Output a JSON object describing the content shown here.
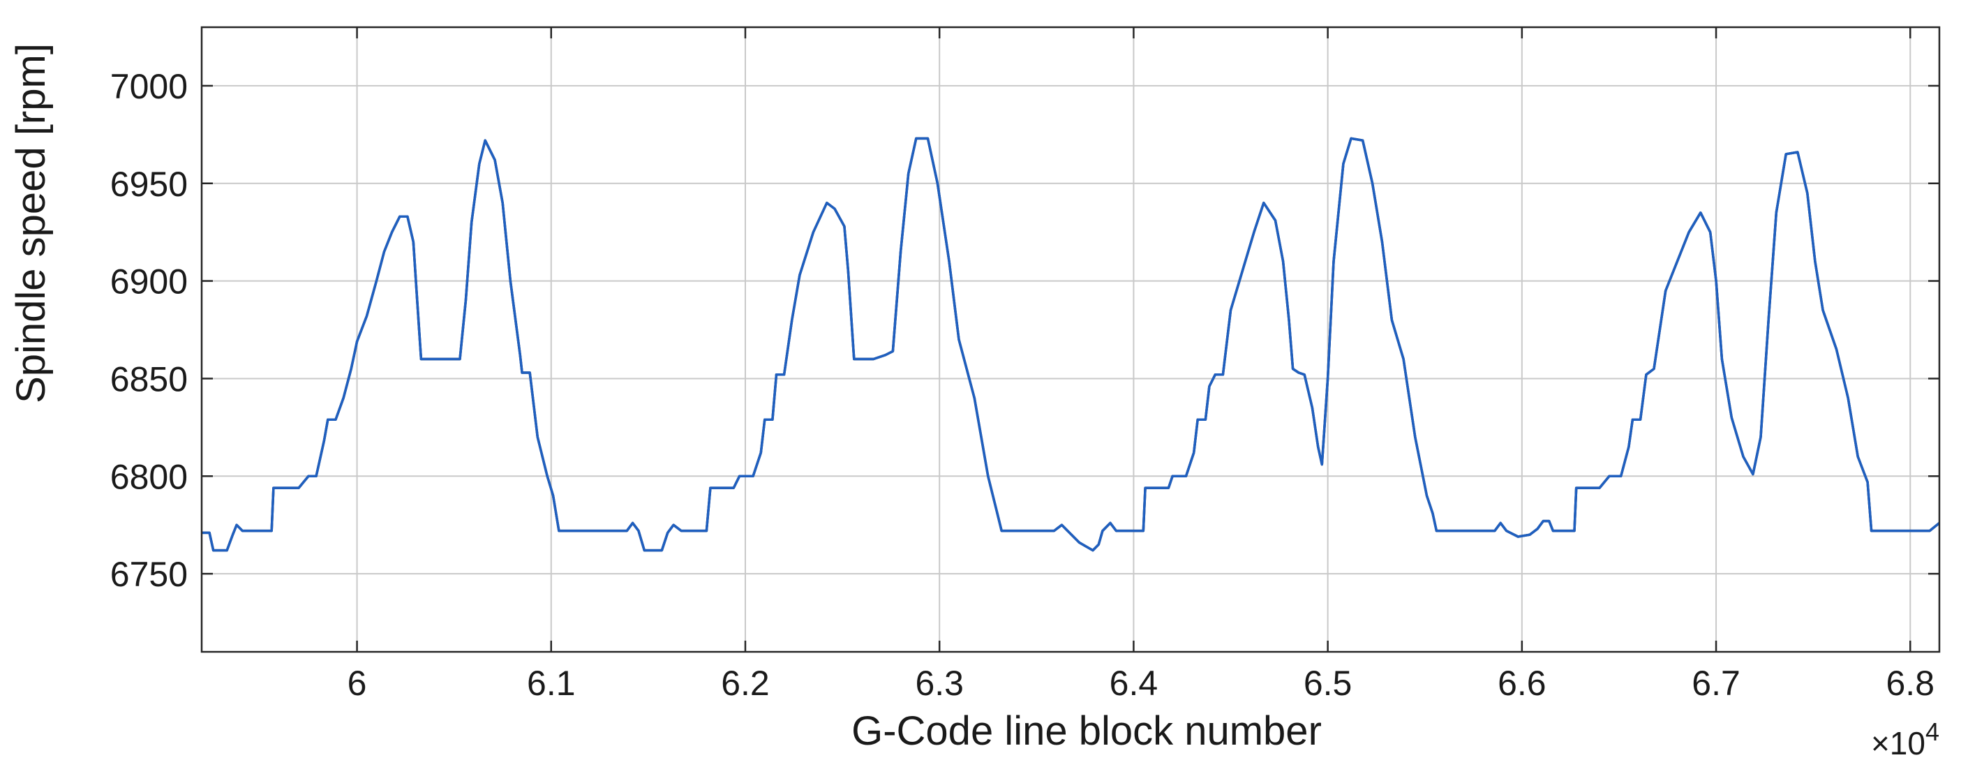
{
  "chart_data": {
    "type": "line",
    "xlabel": "G-Code line block number",
    "ylabel": "Spindle speed [rpm]",
    "x_multiplier": "×10",
    "x_multiplier_exp": "4",
    "xlim": [
      5.92,
      6.815
    ],
    "ylim": [
      6710,
      7030
    ],
    "grid": true,
    "x_ticks": [
      {
        "value": 6.0,
        "label": "6"
      },
      {
        "value": 6.1,
        "label": "6.1"
      },
      {
        "value": 6.2,
        "label": "6.2"
      },
      {
        "value": 6.3,
        "label": "6.3"
      },
      {
        "value": 6.4,
        "label": "6.4"
      },
      {
        "value": 6.5,
        "label": "6.5"
      },
      {
        "value": 6.6,
        "label": "6.6"
      },
      {
        "value": 6.7,
        "label": "6.7"
      },
      {
        "value": 6.8,
        "label": "6.8"
      }
    ],
    "y_ticks": [
      {
        "value": 6750,
        "label": "6750"
      },
      {
        "value": 6800,
        "label": "6800"
      },
      {
        "value": 6850,
        "label": "6850"
      },
      {
        "value": 6900,
        "label": "6900"
      },
      {
        "value": 6950,
        "label": "6950"
      },
      {
        "value": 7000,
        "label": "7000"
      }
    ],
    "series": [
      {
        "color": "#1f5fbf",
        "points": [
          [
            5.92,
            6771
          ],
          [
            5.924,
            6771
          ],
          [
            5.926,
            6762
          ],
          [
            5.933,
            6762
          ],
          [
            5.936,
            6770
          ],
          [
            5.938,
            6775
          ],
          [
            5.941,
            6772
          ],
          [
            5.956,
            6772
          ],
          [
            5.957,
            6794
          ],
          [
            5.97,
            6794
          ],
          [
            5.975,
            6800
          ],
          [
            5.979,
            6800
          ],
          [
            5.983,
            6818
          ],
          [
            5.985,
            6829
          ],
          [
            5.989,
            6829
          ],
          [
            5.993,
            6840
          ],
          [
            5.997,
            6855
          ],
          [
            6.0,
            6869
          ],
          [
            6.005,
            6882
          ],
          [
            6.01,
            6900
          ],
          [
            6.014,
            6915
          ],
          [
            6.018,
            6925
          ],
          [
            6.022,
            6933
          ],
          [
            6.026,
            6933
          ],
          [
            6.029,
            6920
          ],
          [
            6.031,
            6890
          ],
          [
            6.033,
            6860
          ],
          [
            6.053,
            6860
          ],
          [
            6.056,
            6890
          ],
          [
            6.059,
            6930
          ],
          [
            6.063,
            6960
          ],
          [
            6.066,
            6972
          ],
          [
            6.071,
            6962
          ],
          [
            6.075,
            6940
          ],
          [
            6.079,
            6900
          ],
          [
            6.084,
            6862
          ],
          [
            6.085,
            6853
          ],
          [
            6.089,
            6853
          ],
          [
            6.093,
            6820
          ],
          [
            6.098,
            6800
          ],
          [
            6.101,
            6790
          ],
          [
            6.104,
            6772
          ],
          [
            6.139,
            6772
          ],
          [
            6.142,
            6776
          ],
          [
            6.145,
            6772
          ],
          [
            6.148,
            6762
          ],
          [
            6.157,
            6762
          ],
          [
            6.16,
            6771
          ],
          [
            6.163,
            6775
          ],
          [
            6.167,
            6772
          ],
          [
            6.18,
            6772
          ],
          [
            6.182,
            6794
          ],
          [
            6.194,
            6794
          ],
          [
            6.197,
            6800
          ],
          [
            6.204,
            6800
          ],
          [
            6.208,
            6812
          ],
          [
            6.21,
            6829
          ],
          [
            6.214,
            6829
          ],
          [
            6.216,
            6852
          ],
          [
            6.22,
            6852
          ],
          [
            6.224,
            6880
          ],
          [
            6.228,
            6903
          ],
          [
            6.235,
            6925
          ],
          [
            6.242,
            6940
          ],
          [
            6.246,
            6937
          ],
          [
            6.251,
            6928
          ],
          [
            6.253,
            6905
          ],
          [
            6.256,
            6860
          ],
          [
            6.266,
            6860
          ],
          [
            6.272,
            6862
          ],
          [
            6.276,
            6864
          ],
          [
            6.28,
            6915
          ],
          [
            6.284,
            6955
          ],
          [
            6.288,
            6973
          ],
          [
            6.294,
            6973
          ],
          [
            6.299,
            6950
          ],
          [
            6.305,
            6910
          ],
          [
            6.31,
            6870
          ],
          [
            6.318,
            6840
          ],
          [
            6.325,
            6800
          ],
          [
            6.33,
            6780
          ],
          [
            6.332,
            6772
          ],
          [
            6.359,
            6772
          ],
          [
            6.363,
            6775
          ],
          [
            6.366,
            6772
          ],
          [
            6.372,
            6766
          ],
          [
            6.379,
            6762
          ],
          [
            6.382,
            6765
          ],
          [
            6.384,
            6772
          ],
          [
            6.388,
            6776
          ],
          [
            6.391,
            6772
          ],
          [
            6.405,
            6772
          ],
          [
            6.406,
            6794
          ],
          [
            6.418,
            6794
          ],
          [
            6.42,
            6800
          ],
          [
            6.427,
            6800
          ],
          [
            6.431,
            6812
          ],
          [
            6.433,
            6829
          ],
          [
            6.437,
            6829
          ],
          [
            6.439,
            6846
          ],
          [
            6.442,
            6852
          ],
          [
            6.446,
            6852
          ],
          [
            6.45,
            6885
          ],
          [
            6.456,
            6905
          ],
          [
            6.462,
            6925
          ],
          [
            6.467,
            6940
          ],
          [
            6.473,
            6931
          ],
          [
            6.477,
            6910
          ],
          [
            6.48,
            6880
          ],
          [
            6.482,
            6855
          ],
          [
            6.485,
            6853
          ],
          [
            6.488,
            6852
          ],
          [
            6.492,
            6835
          ],
          [
            6.495,
            6815
          ],
          [
            6.497,
            6806
          ],
          [
            6.5,
            6850
          ],
          [
            6.503,
            6910
          ],
          [
            6.508,
            6960
          ],
          [
            6.512,
            6973
          ],
          [
            6.518,
            6972
          ],
          [
            6.523,
            6950
          ],
          [
            6.528,
            6920
          ],
          [
            6.533,
            6880
          ],
          [
            6.539,
            6860
          ],
          [
            6.545,
            6820
          ],
          [
            6.551,
            6790
          ],
          [
            6.554,
            6781
          ],
          [
            6.556,
            6772
          ],
          [
            6.586,
            6772
          ],
          [
            6.589,
            6776
          ],
          [
            6.592,
            6772
          ],
          [
            6.598,
            6769
          ],
          [
            6.604,
            6770
          ],
          [
            6.608,
            6773
          ],
          [
            6.611,
            6777
          ],
          [
            6.614,
            6777
          ],
          [
            6.616,
            6772
          ],
          [
            6.627,
            6772
          ],
          [
            6.628,
            6794
          ],
          [
            6.64,
            6794
          ],
          [
            6.645,
            6800
          ],
          [
            6.651,
            6800
          ],
          [
            6.655,
            6815
          ],
          [
            6.657,
            6829
          ],
          [
            6.661,
            6829
          ],
          [
            6.664,
            6852
          ],
          [
            6.668,
            6855
          ],
          [
            6.674,
            6895
          ],
          [
            6.68,
            6910
          ],
          [
            6.686,
            6925
          ],
          [
            6.692,
            6935
          ],
          [
            6.697,
            6925
          ],
          [
            6.7,
            6900
          ],
          [
            6.703,
            6860
          ],
          [
            6.708,
            6830
          ],
          [
            6.714,
            6810
          ],
          [
            6.719,
            6801
          ],
          [
            6.723,
            6820
          ],
          [
            6.727,
            6880
          ],
          [
            6.731,
            6935
          ],
          [
            6.736,
            6965
          ],
          [
            6.742,
            6966
          ],
          [
            6.747,
            6945
          ],
          [
            6.751,
            6910
          ],
          [
            6.755,
            6885
          ],
          [
            6.762,
            6865
          ],
          [
            6.768,
            6840
          ],
          [
            6.773,
            6810
          ],
          [
            6.778,
            6797
          ],
          [
            6.78,
            6772
          ],
          [
            6.81,
            6772
          ],
          [
            6.815,
            6776
          ]
        ]
      }
    ]
  }
}
